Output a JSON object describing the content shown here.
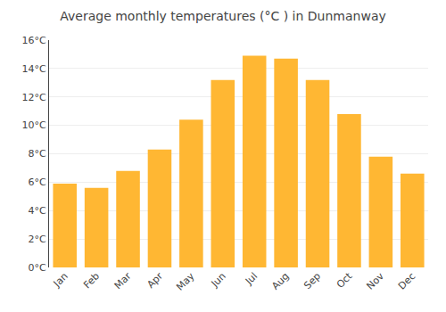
{
  "chart_data": {
    "type": "bar",
    "title": "Average monthly temperatures (°C ) in Dunmanway",
    "categories": [
      "Jan",
      "Feb",
      "Mar",
      "Apr",
      "May",
      "Jun",
      "Jul",
      "Aug",
      "Sep",
      "Oct",
      "Nov",
      "Dec"
    ],
    "values": [
      5.9,
      5.6,
      6.8,
      8.3,
      10.4,
      13.2,
      14.9,
      14.7,
      13.2,
      10.8,
      7.8,
      6.6
    ],
    "color": "#FFB733",
    "ylim": [
      0,
      16
    ],
    "yticks": [
      {
        "value": 0,
        "label": "0°C"
      },
      {
        "value": 2,
        "label": "2°C"
      },
      {
        "value": 4,
        "label": "4°C"
      },
      {
        "value": 6,
        "label": "6°C"
      },
      {
        "value": 8,
        "label": "8°C"
      },
      {
        "value": 10,
        "label": "10°C"
      },
      {
        "value": 12,
        "label": "12°C"
      },
      {
        "value": 14,
        "label": "14°C"
      },
      {
        "value": 16,
        "label": "16°C"
      }
    ],
    "grid": true
  }
}
